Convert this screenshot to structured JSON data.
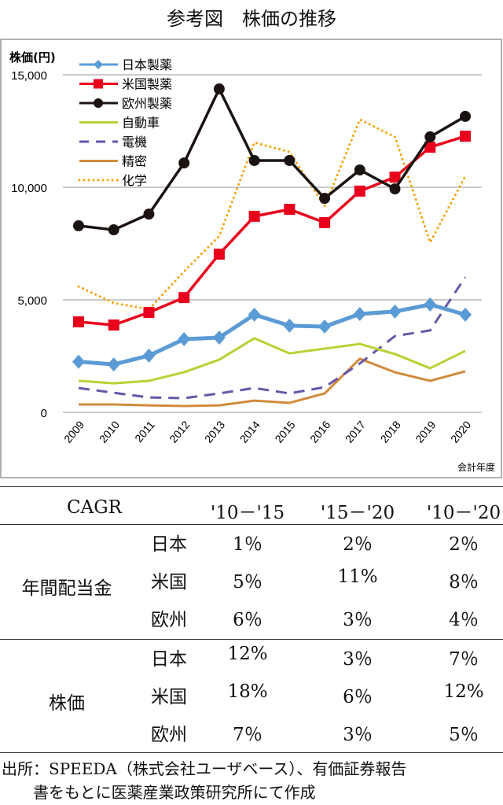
{
  "title": "参考図　株価の推移",
  "chart_data": {
    "type": "line",
    "ylabel": "株価(円)",
    "xlabel": "会計年度",
    "ylim": [
      0,
      15000
    ],
    "yticks": [
      "0",
      "5,000",
      "10,000",
      "15,000"
    ],
    "x": [
      "2009",
      "2010",
      "2011",
      "2012",
      "2013",
      "2014",
      "2015",
      "2016",
      "2017",
      "2018",
      "2019",
      "2020"
    ],
    "grid": true,
    "legend": "top-left",
    "series": [
      {
        "name": "日本製薬",
        "color": "#5b9bd5",
        "style": "solid-diamond",
        "values": [
          2250,
          2130,
          2520,
          3250,
          3320,
          4340,
          3850,
          3810,
          4370,
          4480,
          4790,
          4340
        ]
      },
      {
        "name": "米国製薬",
        "color": "#e8001c",
        "style": "solid-square",
        "values": [
          4020,
          3880,
          4440,
          5100,
          7030,
          8710,
          9020,
          8430,
          9830,
          10450,
          11780,
          12270
        ]
      },
      {
        "name": "欧州製薬",
        "color": "#1a1311",
        "style": "solid-circle",
        "values": [
          8290,
          8110,
          8810,
          11080,
          14370,
          11190,
          11190,
          9510,
          10770,
          9930,
          12240,
          13150
        ]
      },
      {
        "name": "自動車",
        "color": "#b5d334",
        "style": "solid",
        "values": [
          1400,
          1290,
          1400,
          1780,
          2340,
          3290,
          2620,
          2830,
          3040,
          2590,
          1960,
          2730
        ]
      },
      {
        "name": "電機",
        "color": "#6458a8",
        "style": "dashed",
        "values": [
          1080,
          870,
          660,
          630,
          840,
          1080,
          840,
          1120,
          2170,
          3390,
          3640,
          6010
        ]
      },
      {
        "name": "精密",
        "color": "#d08b3c",
        "style": "solid",
        "values": [
          350,
          350,
          310,
          280,
          310,
          520,
          420,
          840,
          2380,
          1780,
          1400,
          1820
        ]
      },
      {
        "name": "化学",
        "color": "#f5a000",
        "style": "dotted",
        "values": [
          5590,
          4860,
          4580,
          6260,
          7830,
          11990,
          11570,
          9160,
          13010,
          12240,
          7550,
          10490
        ]
      }
    ]
  },
  "table": {
    "header": [
      "CAGR",
      "'10－'15",
      "'15－'20",
      "'10－'20"
    ],
    "groups": [
      {
        "label": "年間配当金",
        "rows": [
          [
            "日本",
            "1％",
            "2％",
            "2％"
          ],
          [
            "米国",
            "5％",
            "11%",
            "8％"
          ],
          [
            "欧州",
            "6％",
            "3％",
            "4％"
          ]
        ]
      },
      {
        "label": "株価",
        "rows": [
          [
            "日本",
            "12%",
            "3％",
            "7％"
          ],
          [
            "米国",
            "18%",
            "6％",
            "12%"
          ],
          [
            "欧州",
            "7％",
            "3％",
            "5％"
          ]
        ]
      }
    ]
  },
  "source": [
    "出所：SPEEDA（株式会社ユーザベース）、有価証券報告",
    "　　書をもとに医薬産業政策研究所にて作成"
  ]
}
